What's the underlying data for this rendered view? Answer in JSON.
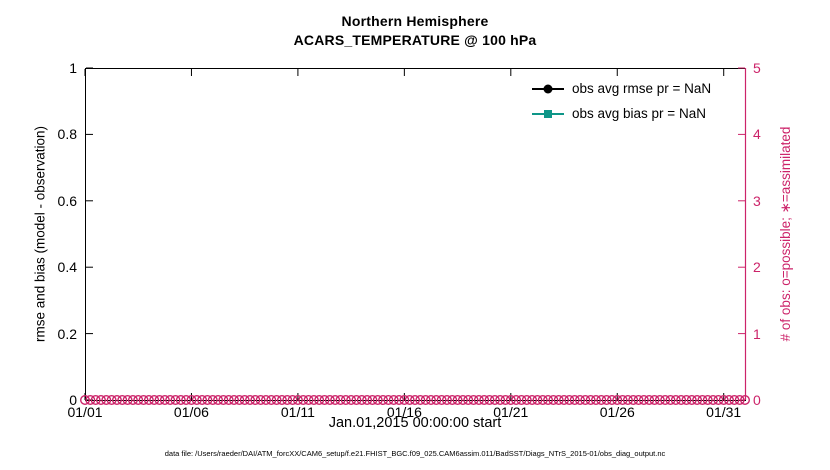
{
  "figure": {
    "title_line1": "Northern Hemisphere",
    "title_line2": "ACARS_TEMPERATURE @ 100 hPa",
    "xlabel": "Jan.01,2015 00:00:00 start",
    "footer": "data file: /Users/raeder/DAI/ATM_forcXX/CAM6_setup/f.e21.FHIST_BGC.f09_025.CAM6assim.011/BadSST/Diags_NTrS_2015-01/obs_diag_output.nc"
  },
  "colors": {
    "accent_pink": "#cc2369",
    "teal": "#0e9688",
    "axis_black": "#000000",
    "background": "#ffffff"
  },
  "left_axis": {
    "label": "rmse and bias (model - observation)",
    "ticks": [
      "0",
      "0.2",
      "0.4",
      "0.6",
      "0.8",
      "1"
    ],
    "tick_values": [
      0,
      0.2,
      0.4,
      0.6,
      0.8,
      1
    ]
  },
  "right_axis": {
    "label": "# of obs: o=possible; ∗=assimilated",
    "ticks": [
      "0",
      "1",
      "2",
      "3",
      "4",
      "5"
    ],
    "tick_values": [
      0,
      1,
      2,
      3,
      4,
      5
    ]
  },
  "x_axis": {
    "ticks": [
      "01/01",
      "01/06",
      "01/11",
      "01/16",
      "01/21",
      "01/26",
      "01/31"
    ],
    "tick_days": [
      0,
      5,
      10,
      15,
      20,
      25,
      30
    ]
  },
  "legend": {
    "items": [
      {
        "label": "obs avg rmse pr = NaN",
        "marker": "circle",
        "color": "#000000"
      },
      {
        "label": "obs avg bias pr = NaN",
        "marker": "square",
        "color": "#0e9688"
      }
    ]
  },
  "chart_data": {
    "type": "line",
    "title": "Northern Hemisphere",
    "subtitle": "ACARS_TEMPERATURE @ 100 hPa",
    "xlabel": "Jan.01,2015 00:00:00 start",
    "x_axis": {
      "tick_labels": [
        "01/01",
        "01/06",
        "01/11",
        "01/16",
        "01/21",
        "01/26",
        "01/31"
      ],
      "tick_days": [
        0,
        5,
        10,
        15,
        20,
        25,
        30
      ],
      "range_days": [
        0,
        31
      ]
    },
    "left_y_axis": {
      "label": "rmse and bias (model - observation)",
      "range": [
        0,
        1
      ],
      "ticks": [
        0,
        0.2,
        0.4,
        0.6,
        0.8,
        1
      ]
    },
    "right_y_axis": {
      "label": "# of obs: o=possible; ∗=assimilated",
      "range": [
        0,
        5
      ],
      "ticks": [
        0,
        1,
        2,
        3,
        4,
        5
      ]
    },
    "grid": false,
    "legend_position": "top-right-inside",
    "series": [
      {
        "name": "obs avg rmse pr = NaN",
        "axis": "left",
        "marker": "filled-circle",
        "color": "#000000",
        "values": []
      },
      {
        "name": "obs avg bias pr = NaN",
        "axis": "left",
        "marker": "filled-square",
        "color": "#0e9688",
        "values": []
      },
      {
        "name": "# of obs possible (o)",
        "axis": "right",
        "marker": "open-circle",
        "color": "#cc2369",
        "constant_value": 0,
        "x_span_days": [
          0,
          31
        ],
        "approx_marker_count": 125
      }
    ]
  }
}
